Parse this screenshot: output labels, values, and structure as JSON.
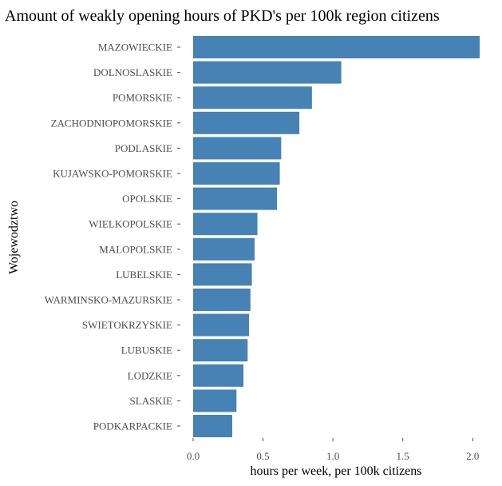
{
  "chart_data": {
    "type": "bar",
    "orientation": "horizontal",
    "title": "Amount of weakly opening hours of PKD's per 100k region citizens",
    "xlabel": "hours per week, per 100k citizens",
    "ylabel": "Wojewodztwo",
    "xlim": [
      0,
      2.05
    ],
    "x_ticks": [
      "0.0",
      "0.5",
      "1.0",
      "1.5",
      "2.0"
    ],
    "grid": false,
    "bar_color": "#4682b4",
    "categories": [
      "MAZOWIECKIE",
      "DOLNOSLASKIE",
      "POMORSKIE",
      "ZACHODNIOPOMORSKIE",
      "PODLASKIE",
      "KUJAWSKO-POMORSKIE",
      "OPOLSKIE",
      "WIELKOPOLSKIE",
      "MALOPOLSKIE",
      "LUBELSKIE",
      "WARMINSKO-MAZURSKIE",
      "SWIETOKRZYSKIE",
      "LUBUSKIE",
      "LODZKIE",
      "SLASKIE",
      "PODKARPACKIE"
    ],
    "values": [
      2.05,
      1.06,
      0.85,
      0.76,
      0.63,
      0.62,
      0.6,
      0.46,
      0.44,
      0.42,
      0.41,
      0.4,
      0.39,
      0.36,
      0.31,
      0.28
    ]
  }
}
